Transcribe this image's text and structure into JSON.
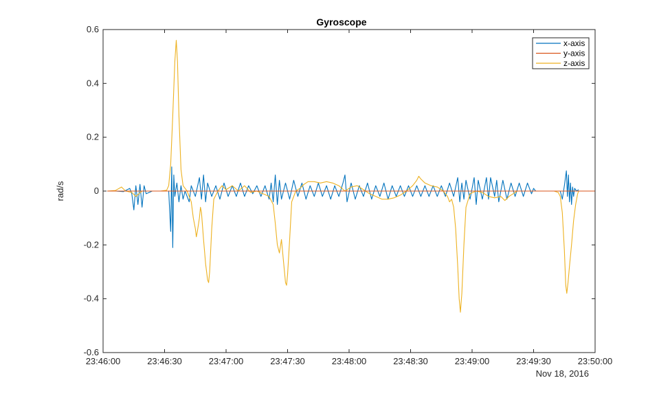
{
  "chart_data": {
    "type": "line",
    "title": "Gyroscope",
    "xlabel": "",
    "ylabel": "rad/s",
    "date_label": "Nov 18, 2016",
    "x_range": [
      "23:46:00",
      "23:50:00"
    ],
    "x_ticks": [
      "23:46:00",
      "23:46:30",
      "23:47:00",
      "23:47:30",
      "23:48:00",
      "23:48:30",
      "23:49:00",
      "23:49:30",
      "23:50:00"
    ],
    "ylim": [
      -0.6,
      0.6
    ],
    "y_ticks": [
      "0.6",
      "0.4",
      "0.2",
      "0",
      "-0.2",
      "-0.4",
      "-0.6"
    ],
    "grid": false,
    "legend_position": "top-right",
    "series": [
      {
        "name": "x-axis",
        "color": "#0072BD",
        "points": [
          [
            "23:46:02",
            0.0
          ],
          [
            "23:46:06",
            0.0
          ],
          [
            "23:46:10",
            -0.002
          ],
          [
            "23:46:13",
            0.01
          ],
          [
            "23:46:14",
            -0.01
          ],
          [
            "23:46:15",
            -0.07
          ],
          [
            "23:46:16",
            0.02
          ],
          [
            "23:46:17",
            -0.05
          ],
          [
            "23:46:18",
            0.025
          ],
          [
            "23:46:19",
            -0.06
          ],
          [
            "23:46:20",
            0.02
          ],
          [
            "23:46:21",
            -0.01
          ],
          [
            "23:46:24",
            0.0
          ],
          [
            "23:46:28",
            0.0
          ],
          [
            "23:46:32",
            0.0
          ],
          [
            "23:46:33",
            -0.15
          ],
          [
            "23:46:33.5",
            0.09
          ],
          [
            "23:46:34",
            -0.21
          ],
          [
            "23:46:34.5",
            0.06
          ],
          [
            "23:46:35",
            -0.02
          ],
          [
            "23:46:36",
            0.03
          ],
          [
            "23:46:37",
            -0.04
          ],
          [
            "23:46:38",
            0.02
          ],
          [
            "23:46:39",
            -0.03
          ],
          [
            "23:46:40",
            0.0
          ],
          [
            "23:46:42",
            -0.04
          ],
          [
            "23:46:43",
            0.02
          ],
          [
            "23:46:45",
            -0.02
          ],
          [
            "23:46:47",
            0.05
          ],
          [
            "23:46:48",
            -0.03
          ],
          [
            "23:46:49",
            0.06
          ],
          [
            "23:46:50",
            -0.04
          ],
          [
            "23:46:51",
            0.03
          ],
          [
            "23:46:53",
            -0.02
          ],
          [
            "23:46:55",
            0.02
          ],
          [
            "23:46:57",
            -0.03
          ],
          [
            "23:46:59",
            0.03
          ],
          [
            "23:47:01",
            -0.02
          ],
          [
            "23:47:03",
            0.02
          ],
          [
            "23:47:05",
            -0.02
          ],
          [
            "23:47:07",
            0.03
          ],
          [
            "23:47:09",
            -0.02
          ],
          [
            "23:47:11",
            0.02
          ],
          [
            "23:47:13",
            -0.01
          ],
          [
            "23:47:15",
            0.02
          ],
          [
            "23:47:17",
            -0.02
          ],
          [
            "23:47:19",
            0.02
          ],
          [
            "23:47:21",
            -0.03
          ],
          [
            "23:47:22",
            0.03
          ],
          [
            "23:47:23",
            -0.04
          ],
          [
            "23:47:24",
            0.06
          ],
          [
            "23:47:25",
            -0.05
          ],
          [
            "23:47:26",
            0.04
          ],
          [
            "23:47:27",
            -0.03
          ],
          [
            "23:47:29",
            0.03
          ],
          [
            "23:47:31",
            -0.03
          ],
          [
            "23:47:33",
            0.04
          ],
          [
            "23:47:35",
            -0.02
          ],
          [
            "23:47:37",
            0.03
          ],
          [
            "23:47:39",
            -0.03
          ],
          [
            "23:47:41",
            0.02
          ],
          [
            "23:47:43",
            -0.02
          ],
          [
            "23:47:45",
            0.03
          ],
          [
            "23:47:47",
            -0.02
          ],
          [
            "23:47:49",
            0.02
          ],
          [
            "23:47:51",
            -0.03
          ],
          [
            "23:47:53",
            0.02
          ],
          [
            "23:47:55",
            -0.02
          ],
          [
            "23:47:57",
            0.03
          ],
          [
            "23:47:58",
            0.06
          ],
          [
            "23:47:59",
            -0.04
          ],
          [
            "23:48:01",
            0.03
          ],
          [
            "23:48:03",
            -0.03
          ],
          [
            "23:48:05",
            0.02
          ],
          [
            "23:48:07",
            -0.02
          ],
          [
            "23:48:09",
            0.03
          ],
          [
            "23:48:11",
            -0.03
          ],
          [
            "23:48:13",
            0.02
          ],
          [
            "23:48:15",
            -0.02
          ],
          [
            "23:48:17",
            0.03
          ],
          [
            "23:48:19",
            -0.03
          ],
          [
            "23:48:21",
            0.02
          ],
          [
            "23:48:23",
            -0.02
          ],
          [
            "23:48:25",
            0.02
          ],
          [
            "23:48:27",
            -0.02
          ],
          [
            "23:48:29",
            0.02
          ],
          [
            "23:48:31",
            -0.02
          ],
          [
            "23:48:33",
            0.02
          ],
          [
            "23:48:35",
            -0.02
          ],
          [
            "23:48:37",
            0.02
          ],
          [
            "23:48:39",
            -0.02
          ],
          [
            "23:48:41",
            0.02
          ],
          [
            "23:48:43",
            -0.02
          ],
          [
            "23:48:45",
            0.02
          ],
          [
            "23:48:47",
            -0.02
          ],
          [
            "23:48:49",
            0.03
          ],
          [
            "23:48:51",
            -0.02
          ],
          [
            "23:48:53",
            0.05
          ],
          [
            "23:48:54",
            -0.04
          ],
          [
            "23:48:55",
            0.03
          ],
          [
            "23:48:56",
            -0.03
          ],
          [
            "23:48:57",
            0.04
          ],
          [
            "23:48:59",
            -0.03
          ],
          [
            "23:49:01",
            0.05
          ],
          [
            "23:49:02",
            -0.05
          ],
          [
            "23:49:03",
            0.04
          ],
          [
            "23:49:05",
            -0.03
          ],
          [
            "23:49:07",
            0.05
          ],
          [
            "23:49:08",
            -0.03
          ],
          [
            "23:49:09",
            0.05
          ],
          [
            "23:49:11",
            -0.02
          ],
          [
            "23:49:12",
            0.04
          ],
          [
            "23:49:13",
            -0.04
          ],
          [
            "23:49:15",
            0.04
          ],
          [
            "23:49:17",
            -0.03
          ],
          [
            "23:49:19",
            0.03
          ],
          [
            "23:49:21",
            -0.02
          ],
          [
            "23:49:23",
            0.03
          ],
          [
            "23:49:25",
            -0.02
          ],
          [
            "23:49:27",
            0.03
          ],
          [
            "23:49:29",
            -0.01
          ],
          [
            "23:49:30",
            0.01
          ],
          [
            "23:49:31",
            0.0
          ],
          [
            "23:49:35",
            0.0
          ],
          [
            "23:49:40",
            0.0
          ],
          [
            "23:49:43",
            0.0
          ],
          [
            "23:49:44",
            -0.03
          ],
          [
            "23:49:45",
            0.02
          ],
          [
            "23:49:46",
            0.075
          ],
          [
            "23:49:46.5",
            -0.02
          ],
          [
            "23:49:47",
            0.06
          ],
          [
            "23:49:47.5",
            -0.04
          ],
          [
            "23:49:48",
            0.03
          ],
          [
            "23:49:48.5",
            -0.05
          ],
          [
            "23:49:49",
            0.015
          ],
          [
            "23:49:49.5",
            -0.02
          ],
          [
            "23:49:50",
            0.01
          ],
          [
            "23:49:51",
            0.0
          ],
          [
            "23:49:52",
            0.005
          ]
        ]
      },
      {
        "name": "y-axis",
        "color": "#D95319",
        "points": [
          [
            "23:46:02",
            0.0
          ],
          [
            "23:47:00",
            0.0
          ],
          [
            "23:48:00",
            0.0
          ],
          [
            "23:49:00",
            0.0
          ],
          [
            "23:50:00",
            0.0
          ]
        ]
      },
      {
        "name": "z-axis",
        "color": "#EDB120",
        "points": [
          [
            "23:46:02",
            0.0
          ],
          [
            "23:46:06",
            0.002
          ],
          [
            "23:46:09",
            0.015
          ],
          [
            "23:46:11",
            0.0
          ],
          [
            "23:46:14",
            -0.005
          ],
          [
            "23:46:16",
            -0.02
          ],
          [
            "23:46:19",
            0.0
          ],
          [
            "23:46:23",
            0.0
          ],
          [
            "23:46:28",
            0.0
          ],
          [
            "23:46:31",
            0.003
          ],
          [
            "23:46:32",
            0.02
          ],
          [
            "23:46:33",
            0.1
          ],
          [
            "23:46:34",
            0.28
          ],
          [
            "23:46:35",
            0.48
          ],
          [
            "23:46:35.7",
            0.56
          ],
          [
            "23:46:36.3",
            0.48
          ],
          [
            "23:46:37",
            0.28
          ],
          [
            "23:46:38",
            0.08
          ],
          [
            "23:46:39",
            0.02
          ],
          [
            "23:46:41",
            0.0
          ],
          [
            "23:46:43",
            -0.04
          ],
          [
            "23:46:44",
            -0.1
          ],
          [
            "23:46:45",
            -0.14
          ],
          [
            "23:46:45.5",
            -0.17
          ],
          [
            "23:46:46",
            -0.15
          ],
          [
            "23:46:47",
            -0.1
          ],
          [
            "23:46:47.5",
            -0.06
          ],
          [
            "23:46:48",
            -0.08
          ],
          [
            "23:46:49",
            -0.18
          ],
          [
            "23:46:50",
            -0.27
          ],
          [
            "23:46:51",
            -0.33
          ],
          [
            "23:46:51.5",
            -0.34
          ],
          [
            "23:46:52",
            -0.3
          ],
          [
            "23:46:53",
            -0.14
          ],
          [
            "23:46:54",
            -0.03
          ],
          [
            "23:46:56",
            0.0
          ],
          [
            "23:46:58",
            0.02
          ],
          [
            "23:47:00",
            0.005
          ],
          [
            "23:47:03",
            0.02
          ],
          [
            "23:47:06",
            0.0
          ],
          [
            "23:47:09",
            0.02
          ],
          [
            "23:47:12",
            -0.005
          ],
          [
            "23:47:15",
            0.0
          ],
          [
            "23:47:18",
            -0.01
          ],
          [
            "23:47:21",
            -0.02
          ],
          [
            "23:47:23",
            -0.05
          ],
          [
            "23:47:24",
            -0.12
          ],
          [
            "23:47:25",
            -0.2
          ],
          [
            "23:47:26",
            -0.23
          ],
          [
            "23:47:27",
            -0.18
          ],
          [
            "23:47:28",
            -0.26
          ],
          [
            "23:47:29",
            -0.34
          ],
          [
            "23:47:29.5",
            -0.35
          ],
          [
            "23:47:30",
            -0.31
          ],
          [
            "23:47:31",
            -0.18
          ],
          [
            "23:47:32",
            -0.04
          ],
          [
            "23:47:34",
            0.0
          ],
          [
            "23:47:36",
            0.01
          ],
          [
            "23:47:38",
            0.025
          ],
          [
            "23:47:40",
            0.035
          ],
          [
            "23:47:43",
            0.035
          ],
          [
            "23:47:46",
            0.03
          ],
          [
            "23:47:49",
            0.035
          ],
          [
            "23:47:52",
            0.03
          ],
          [
            "23:47:55",
            0.02
          ],
          [
            "23:47:58",
            0.0
          ],
          [
            "23:48:01",
            0.015
          ],
          [
            "23:48:04",
            0.02
          ],
          [
            "23:48:07",
            0.005
          ],
          [
            "23:48:10",
            -0.01
          ],
          [
            "23:48:13",
            -0.02
          ],
          [
            "23:48:16",
            -0.03
          ],
          [
            "23:48:19",
            -0.03
          ],
          [
            "23:48:22",
            -0.025
          ],
          [
            "23:48:25",
            -0.015
          ],
          [
            "23:48:28",
            0.0
          ],
          [
            "23:48:31",
            0.02
          ],
          [
            "23:48:33",
            0.04
          ],
          [
            "23:48:34",
            0.055
          ],
          [
            "23:48:35",
            0.045
          ],
          [
            "23:48:37",
            0.03
          ],
          [
            "23:48:40",
            0.02
          ],
          [
            "23:48:43",
            0.015
          ],
          [
            "23:48:46",
            0.0
          ],
          [
            "23:48:48",
            -0.02
          ],
          [
            "23:48:49",
            -0.04
          ],
          [
            "23:48:50",
            -0.03
          ],
          [
            "23:48:51",
            -0.06
          ],
          [
            "23:48:52",
            -0.14
          ],
          [
            "23:48:53",
            -0.28
          ],
          [
            "23:48:53.7",
            -0.4
          ],
          [
            "23:48:54.3",
            -0.45
          ],
          [
            "23:48:55",
            -0.38
          ],
          [
            "23:48:56",
            -0.2
          ],
          [
            "23:48:57",
            -0.06
          ],
          [
            "23:48:59",
            -0.01
          ],
          [
            "23:49:02",
            0.0
          ],
          [
            "23:49:05",
            -0.005
          ],
          [
            "23:49:08",
            -0.02
          ],
          [
            "23:49:11",
            -0.025
          ],
          [
            "23:49:14",
            -0.02
          ],
          [
            "23:49:16",
            -0.035
          ],
          [
            "23:49:18",
            -0.02
          ],
          [
            "23:49:20",
            -0.01
          ],
          [
            "23:49:22",
            0.0
          ],
          [
            "23:49:26",
            0.0
          ],
          [
            "23:49:30",
            0.0
          ],
          [
            "23:49:35",
            0.0
          ],
          [
            "23:49:40",
            0.0
          ],
          [
            "23:49:42",
            -0.005
          ],
          [
            "23:49:43",
            -0.02
          ],
          [
            "23:49:44",
            -0.08
          ],
          [
            "23:49:45",
            -0.22
          ],
          [
            "23:49:45.7",
            -0.35
          ],
          [
            "23:49:46.2",
            -0.38
          ],
          [
            "23:49:46.8",
            -0.34
          ],
          [
            "23:49:47.5",
            -0.28
          ],
          [
            "23:49:48.5",
            -0.2
          ],
          [
            "23:49:49.5",
            -0.11
          ],
          [
            "23:49:50.5",
            -0.05
          ],
          [
            "23:49:51.5",
            -0.01
          ],
          [
            "23:49:52",
            0.0
          ]
        ]
      }
    ]
  }
}
